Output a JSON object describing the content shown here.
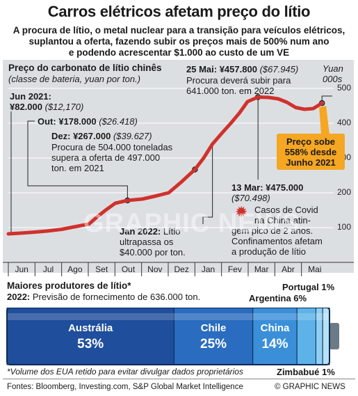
{
  "header": {
    "title": "Carros elétricos afetam preço do lítio",
    "subtitle_lines": [
      "A procura de lítio, o metal nuclear para a transição para veículos elétricos,",
      "suplantou a oferta, fazendo subir os preços mais de 500% num ano",
      "e podendo acrescentar $1.000 ao custo de um VE"
    ]
  },
  "price_chart": {
    "title": "Preço do carbonato de lítio chinês",
    "subtitle": "(classe de bateria, yuan por ton.)",
    "unit_line1": "Yuan",
    "unit_line2": "000s",
    "y_ticks": [
      "500",
      "400",
      "300",
      "200",
      "100"
    ],
    "x_ticks": [
      "Jun",
      "Jul",
      "Ago",
      "Set",
      "Out",
      "Nov",
      "Dez",
      "Jan",
      "Fev",
      "Mar",
      "Abr",
      "Mai"
    ],
    "annotations": {
      "jun": {
        "date": "Jun 2021:",
        "price": "¥82.000",
        "usd": "($12,170)"
      },
      "out": {
        "date": "Out:",
        "price": "¥178.000",
        "usd": "($26.418)"
      },
      "dez": {
        "date": "Dez:",
        "price": "¥267.000",
        "usd": "($39.627)",
        "note1": "Procura de 504.000 toneladas",
        "note2": "supera a oferta de 497.000",
        "note3": "ton. em 2021"
      },
      "jan": {
        "date": "Jan 2022:",
        "text": "Lítio",
        "line2": "ultrapassa os",
        "line3": "$40.000 por ton."
      },
      "mai": {
        "date": "25 Mai:",
        "price": "¥457.800",
        "usd": "($67.945)",
        "note1": "Procura deverá subir para",
        "note2": "641.000 ton. em 2022"
      },
      "mar": {
        "date": "13 Mar:",
        "price": "¥475.000",
        "usd": "($70.498)",
        "note1": "Casos de Covid",
        "note2": "na China atin-",
        "note3": "gem pico de 2 anos.",
        "note4": "Confinamentos afetam",
        "note5": "a produção de lítio"
      }
    },
    "callout": {
      "line1": "Preço sobe",
      "line2": "558% desde",
      "line3": "Junho 2021"
    },
    "watermark": "GRAPHIC NEWS",
    "colors": {
      "line": "#d0312d",
      "panel": "#dcdfe2",
      "callout": "#f5a623"
    }
  },
  "chart_data": [
    {
      "type": "line",
      "title": "Preço do carbonato de lítio chinês",
      "ylabel": "Yuan 000s",
      "ylim": [
        0,
        500
      ],
      "x": [
        "2021-06-01",
        "2021-06-15",
        "2021-07-01",
        "2021-07-15",
        "2021-08-01",
        "2021-08-15",
        "2021-09-01",
        "2021-09-10",
        "2021-09-20",
        "2021-10-01",
        "2021-10-15",
        "2021-11-01",
        "2021-11-15",
        "2021-12-01",
        "2021-12-15",
        "2021-12-31",
        "2022-01-10",
        "2022-01-20",
        "2022-02-01",
        "2022-02-10",
        "2022-02-20",
        "2022-03-01",
        "2022-03-13",
        "2022-03-25",
        "2022-04-05",
        "2022-04-15",
        "2022-04-25",
        "2022-05-05",
        "2022-05-15",
        "2022-05-25"
      ],
      "series": [
        {
          "values": [
            82,
            84,
            87,
            90,
            95,
            102,
            110,
            130,
            150,
            170,
            178,
            182,
            190,
            200,
            230,
            267,
            300,
            340,
            375,
            400,
            430,
            462,
            475,
            474,
            470,
            460,
            445,
            440,
            442,
            457.8
          ]
        }
      ]
    },
    {
      "type": "bar",
      "title": "Maiores produtores de lítio*",
      "categories": [
        "Austrália",
        "Chile",
        "China",
        "Argentina",
        "Portugal",
        "Zimbabué"
      ],
      "values": [
        53,
        25,
        14,
        6,
        1,
        1
      ]
    }
  ],
  "producers": {
    "title": "Maiores produtores de lítio*",
    "year": "2022:",
    "subtitle": "Previsão de fornecimento de 636.000 ton.",
    "items": [
      {
        "name": "Austrália",
        "pct": "53%",
        "color": "#1f4e9c"
      },
      {
        "name": "Chile",
        "pct": "25%",
        "color": "#2a6cbf"
      },
      {
        "name": "China",
        "pct": "14%",
        "color": "#3a8fd8"
      },
      {
        "name": "Argentina",
        "pct": "6%",
        "color": "#5db3e8"
      },
      {
        "name": "Portugal",
        "pct": "1%",
        "color": "#8fd0f2"
      },
      {
        "name": "Zimbabué",
        "pct": "1%",
        "color": "#b6e2f7"
      }
    ]
  },
  "footer": {
    "footnote": "*Volume dos EUA retido para evitar divulgar dados proprietários",
    "sources": "Fontes: Bloomberg, Investing.com, S&P Global Market Intelligence",
    "credit": "© GRAPHIC NEWS"
  }
}
